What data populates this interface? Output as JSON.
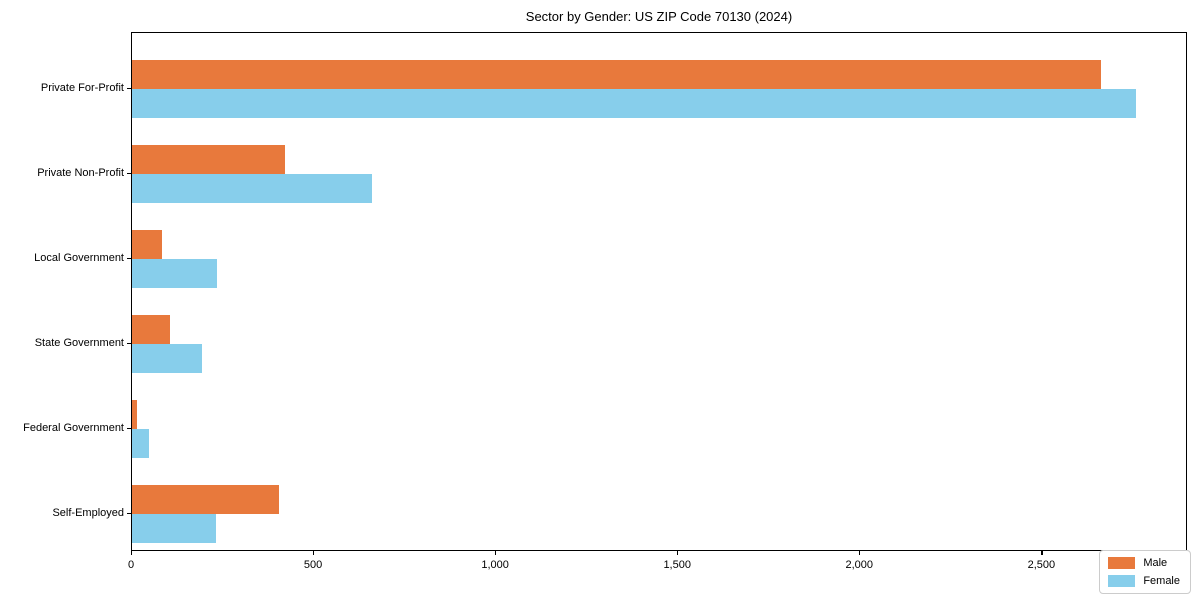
{
  "chart_data": {
    "type": "bar",
    "orientation": "horizontal",
    "title": "Sector by Gender: US ZIP Code 70130 (2024)",
    "categories": [
      "Private For-Profit",
      "Private Non-Profit",
      "Local Government",
      "State Government",
      "Federal Government",
      "Self-Employed"
    ],
    "series": [
      {
        "name": "Male",
        "color": "#e8793c",
        "values": [
          2660,
          421,
          82,
          104,
          14,
          405
        ]
      },
      {
        "name": "Female",
        "color": "#87ceeb",
        "values": [
          2758,
          659,
          233,
          192,
          46,
          231
        ]
      }
    ],
    "xlabel": "",
    "ylabel": "",
    "xlim": [
      0,
      2900
    ],
    "x_tick_values": [
      0,
      500,
      1000,
      1500,
      2000,
      2500
    ],
    "x_tick_labels": [
      "0",
      "500",
      "1,000",
      "1,500",
      "2,000",
      "2,500"
    ],
    "grid": false,
    "legend_position": "lower right",
    "background_color": "#ffffff",
    "spine_color": "#000000"
  }
}
